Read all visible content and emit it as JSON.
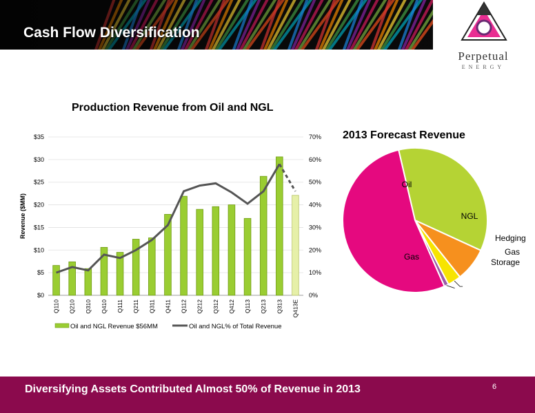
{
  "slide": {
    "title": "Cash Flow Diversification",
    "footer": "Diversifying Assets Contributed Almost 50% of Revenue in 2013",
    "page_number": "6"
  },
  "logo": {
    "name": "Perpetual",
    "sub": "ENERGY"
  },
  "colors": {
    "bar": "#9acd32",
    "bar_forecast": "#e6f0a8",
    "line": "#555555",
    "footer": "#8b0a4d",
    "oil": "#b5d334",
    "ngl": "#f6901e",
    "hedging": "#f7e400",
    "gas_storage": "#9b59a6",
    "gas": "#e5097f"
  },
  "chart_data": [
    {
      "type": "bar",
      "title": "Production Revenue from Oil and NGL",
      "ylabel": "Revenue ($MM)",
      "ylim": [
        0,
        35
      ],
      "y2lim": [
        0,
        70
      ],
      "y_ticks": [
        "$0",
        "$5",
        "$10",
        "$15",
        "$20",
        "$25",
        "$30",
        "$35"
      ],
      "y2_ticks": [
        "0%",
        "10%",
        "20%",
        "30%",
        "40%",
        "50%",
        "60%",
        "70%"
      ],
      "categories": [
        "Q110",
        "Q210",
        "Q310",
        "Q410",
        "Q111",
        "Q211",
        "Q311",
        "Q411",
        "Q112",
        "Q212",
        "Q312",
        "Q412",
        "Q113",
        "Q213",
        "Q313",
        "Q413E"
      ],
      "series": [
        {
          "name": "Oil and NGL Revenue $56MM",
          "type": "bar",
          "values": [
            6.6,
            7.4,
            5.9,
            10.6,
            9.5,
            12.4,
            12.7,
            17.9,
            21.9,
            19.0,
            19.6,
            20.0,
            17.0,
            26.3,
            30.6,
            22.1
          ]
        },
        {
          "name": "Oil and NGL% of Total Revenue",
          "type": "line",
          "axis": "right",
          "values": [
            10,
            12.5,
            11,
            18,
            16.5,
            20,
            24.5,
            31,
            46,
            48.5,
            49.5,
            45.5,
            40.5,
            46,
            58,
            46
          ]
        }
      ],
      "legend": "bottom"
    },
    {
      "type": "pie",
      "title": "2013 Forecast Revenue",
      "categories": [
        "Oil",
        "NGL",
        "Hedging",
        "Gas Storage",
        "Gas"
      ],
      "values": [
        35.5,
        7.5,
        3,
        1,
        53
      ]
    }
  ]
}
